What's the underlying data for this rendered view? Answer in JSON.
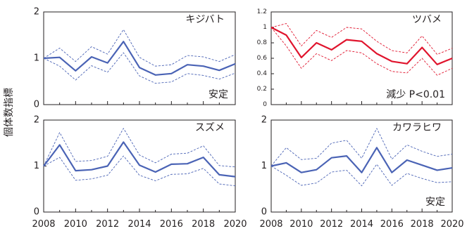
{
  "figure": {
    "ylabel": "個体数指標",
    "x_ticks": [
      "2008",
      "2010",
      "2012",
      "2014",
      "2016",
      "2018",
      "2020"
    ]
  },
  "chart_data": [
    {
      "type": "line",
      "title": "キジバト",
      "annotation": "安定",
      "x": [
        2008,
        2009,
        2010,
        2011,
        2012,
        2013,
        2014,
        2015,
        2016,
        2017,
        2018,
        2019,
        2020
      ],
      "xlim": [
        2008,
        2020
      ],
      "ylim": [
        0,
        2
      ],
      "y_ticks": [
        "0",
        "1",
        "2"
      ],
      "color": "#4a63b5",
      "series": [
        {
          "values": [
            1.0,
            1.02,
            0.73,
            1.03,
            0.9,
            1.36,
            0.8,
            0.64,
            0.67,
            0.86,
            0.83,
            0.74,
            0.88
          ]
        },
        {
          "values": [
            1.0,
            1.22,
            0.93,
            1.25,
            1.09,
            1.62,
            1.02,
            0.83,
            0.86,
            1.06,
            1.03,
            0.93,
            1.08
          ]
        },
        {
          "values": [
            1.0,
            0.83,
            0.53,
            0.84,
            0.7,
            1.12,
            0.62,
            0.46,
            0.49,
            0.67,
            0.63,
            0.55,
            0.68
          ]
        }
      ]
    },
    {
      "type": "line",
      "title": "ツバメ",
      "annotation": "減少 P<0.01",
      "x": [
        2008,
        2009,
        2010,
        2011,
        2012,
        2013,
        2014,
        2015,
        2016,
        2017,
        2018,
        2019,
        2020
      ],
      "xlim": [
        2008,
        2020
      ],
      "ylim": [
        0,
        1.2
      ],
      "y_ticks": [
        "0",
        "0.2",
        "0.4",
        "0.6",
        "0.8",
        "1",
        "1.2"
      ],
      "color": "#e0142d",
      "series": [
        {
          "values": [
            1.0,
            0.9,
            0.61,
            0.8,
            0.71,
            0.84,
            0.82,
            0.66,
            0.56,
            0.53,
            0.74,
            0.52,
            0.6
          ]
        },
        {
          "values": [
            1.0,
            1.05,
            0.76,
            0.96,
            0.87,
            1.0,
            0.98,
            0.82,
            0.7,
            0.67,
            0.89,
            0.65,
            0.73
          ]
        },
        {
          "values": [
            1.0,
            0.76,
            0.47,
            0.66,
            0.57,
            0.7,
            0.67,
            0.53,
            0.43,
            0.41,
            0.6,
            0.38,
            0.47
          ]
        }
      ]
    },
    {
      "type": "line",
      "title": "スズメ",
      "annotation": "",
      "x": [
        2008,
        2009,
        2010,
        2011,
        2012,
        2013,
        2014,
        2015,
        2016,
        2017,
        2018,
        2019,
        2020
      ],
      "xlim": [
        2008,
        2020
      ],
      "ylim": [
        0,
        2
      ],
      "y_ticks": [
        "0",
        "1",
        "2"
      ],
      "color": "#4a63b5",
      "series": [
        {
          "values": [
            1.0,
            1.46,
            0.9,
            0.92,
            1.0,
            1.52,
            1.02,
            0.87,
            1.04,
            1.05,
            1.19,
            0.81,
            0.77
          ]
        },
        {
          "values": [
            1.0,
            1.73,
            1.1,
            1.12,
            1.21,
            1.82,
            1.24,
            1.07,
            1.26,
            1.28,
            1.44,
            1.01,
            0.98
          ]
        },
        {
          "values": [
            1.0,
            1.19,
            0.69,
            0.72,
            0.8,
            1.22,
            0.8,
            0.68,
            0.82,
            0.83,
            0.95,
            0.61,
            0.57
          ]
        }
      ]
    },
    {
      "type": "line",
      "title": "カワラヒワ",
      "annotation": "安定",
      "x": [
        2008,
        2009,
        2010,
        2011,
        2012,
        2013,
        2014,
        2015,
        2016,
        2017,
        2018,
        2019,
        2020
      ],
      "xlim": [
        2008,
        2020
      ],
      "ylim": [
        0,
        2
      ],
      "y_ticks": [
        "0",
        "1",
        "2"
      ],
      "color": "#4a63b5",
      "series": [
        {
          "values": [
            1.0,
            1.07,
            0.86,
            0.92,
            1.18,
            1.22,
            0.86,
            1.4,
            0.86,
            1.13,
            1.02,
            0.91,
            0.96
          ]
        },
        {
          "values": [
            1.0,
            1.4,
            1.14,
            1.17,
            1.5,
            1.56,
            1.17,
            1.82,
            1.15,
            1.46,
            1.32,
            1.21,
            1.26
          ]
        },
        {
          "values": [
            1.0,
            0.8,
            0.58,
            0.63,
            0.87,
            0.91,
            0.57,
            1.04,
            0.58,
            0.84,
            0.73,
            0.64,
            0.66
          ]
        }
      ]
    }
  ]
}
